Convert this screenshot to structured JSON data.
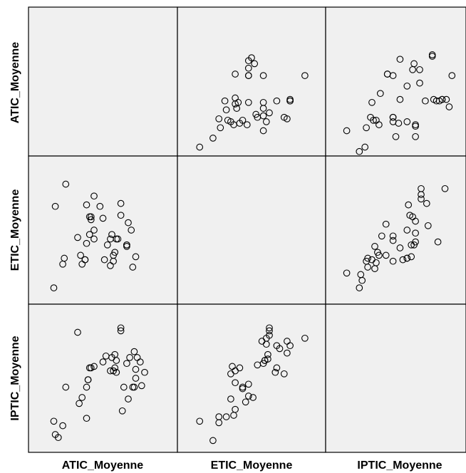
{
  "chart_data": {
    "type": "scatter",
    "subtype": "scatterplot-matrix",
    "variables": [
      "ATIC_Moyenne",
      "ETIC_Moyenne",
      "IPTIC_Moyenne"
    ],
    "range": [
      0,
      100
    ],
    "grid": false,
    "marker": "hollow-circle",
    "panels": [
      {
        "row": "ATIC_Moyenne",
        "col": "ETIC_Moyenne",
        "points": [
          [
            15,
            6
          ],
          [
            24,
            12
          ],
          [
            28,
            25
          ],
          [
            29,
            19
          ],
          [
            32,
            37
          ],
          [
            33,
            31
          ],
          [
            34,
            24
          ],
          [
            36,
            23
          ],
          [
            38,
            21
          ],
          [
            39,
            39
          ],
          [
            39,
            55
          ],
          [
            39,
            35
          ],
          [
            41,
            36
          ],
          [
            40,
            32
          ],
          [
            42,
            22
          ],
          [
            44,
            24
          ],
          [
            47,
            21
          ],
          [
            48,
            54
          ],
          [
            48,
            54
          ],
          [
            48,
            36
          ],
          [
            48,
            59
          ],
          [
            48,
            64
          ],
          [
            50,
            66
          ],
          [
            52,
            62
          ],
          [
            53,
            28
          ],
          [
            54,
            26
          ],
          [
            58,
            27
          ],
          [
            58,
            17
          ],
          [
            58,
            32
          ],
          [
            58,
            36
          ],
          [
            58,
            54
          ],
          [
            60,
            23
          ],
          [
            62,
            29
          ],
          [
            67,
            37
          ],
          [
            72,
            26
          ],
          [
            74,
            25
          ],
          [
            76,
            37
          ],
          [
            76,
            37
          ],
          [
            76,
            38
          ],
          [
            86,
            54
          ]
        ]
      },
      {
        "row": "ATIC_Moyenne",
        "col": "IPTIC_Moyenne",
        "points": [
          [
            15,
            17
          ],
          [
            24,
            3
          ],
          [
            28,
            6
          ],
          [
            29,
            19
          ],
          [
            32,
            26
          ],
          [
            33,
            36
          ],
          [
            34,
            24
          ],
          [
            36,
            24
          ],
          [
            38,
            21
          ],
          [
            39,
            42
          ],
          [
            44,
            55
          ],
          [
            44,
            55
          ],
          [
            48,
            54
          ],
          [
            48,
            23
          ],
          [
            48,
            26
          ],
          [
            48,
            26
          ],
          [
            50,
            13
          ],
          [
            52,
            22
          ],
          [
            53,
            38
          ],
          [
            53,
            65
          ],
          [
            58,
            47
          ],
          [
            58,
            23
          ],
          [
            62,
            58
          ],
          [
            63,
            62
          ],
          [
            64,
            13
          ],
          [
            64,
            20
          ],
          [
            64,
            21
          ],
          [
            67,
            49
          ],
          [
            67,
            58
          ],
          [
            71,
            37
          ],
          [
            76,
            67
          ],
          [
            76,
            68
          ],
          [
            77,
            38
          ],
          [
            79,
            37
          ],
          [
            81,
            37
          ],
          [
            83,
            38
          ],
          [
            83,
            38
          ],
          [
            86,
            38
          ],
          [
            88,
            33
          ],
          [
            90,
            54
          ]
        ]
      },
      {
        "row": "ETIC_Moyenne",
        "col": "ATIC_Moyenne",
        "points": [
          [
            17,
            11
          ],
          [
            18,
            66
          ],
          [
            23,
            27
          ],
          [
            24,
            31
          ],
          [
            25,
            81
          ],
          [
            33,
            45
          ],
          [
            35,
            33
          ],
          [
            36,
            27
          ],
          [
            38,
            30
          ],
          [
            38,
            30
          ],
          [
            39,
            41
          ],
          [
            39,
            67
          ],
          [
            41,
            47
          ],
          [
            41,
            59
          ],
          [
            42,
            59
          ],
          [
            42,
            57
          ],
          [
            44,
            44
          ],
          [
            44,
            50
          ],
          [
            44,
            73
          ],
          [
            48,
            66
          ],
          [
            50,
            58
          ],
          [
            51,
            30
          ],
          [
            53,
            40
          ],
          [
            55,
            26
          ],
          [
            55,
            44
          ],
          [
            56,
            47
          ],
          [
            57,
            29
          ],
          [
            57,
            33
          ],
          [
            58,
            35
          ],
          [
            59,
            44
          ],
          [
            60,
            44
          ],
          [
            62,
            60
          ],
          [
            62,
            68
          ],
          [
            66,
            40
          ],
          [
            66,
            39
          ],
          [
            66,
            40
          ],
          [
            67,
            55
          ],
          [
            69,
            50
          ],
          [
            70,
            25
          ],
          [
            72,
            32
          ]
        ]
      },
      {
        "row": "ETIC_Moyenne",
        "col": "IPTIC_Moyenne",
        "points": [
          [
            15,
            21
          ],
          [
            24,
            11
          ],
          [
            25,
            20
          ],
          [
            26,
            16
          ],
          [
            29,
            29
          ],
          [
            30,
            31
          ],
          [
            30,
            25
          ],
          [
            33,
            30
          ],
          [
            35,
            39
          ],
          [
            35,
            24
          ],
          [
            36,
            28
          ],
          [
            37,
            35
          ],
          [
            38,
            33
          ],
          [
            40,
            46
          ],
          [
            43,
            54
          ],
          [
            43,
            33
          ],
          [
            48,
            46
          ],
          [
            48,
            29
          ],
          [
            48,
            43
          ],
          [
            53,
            38
          ],
          [
            55,
            30
          ],
          [
            58,
            31
          ],
          [
            58,
            31
          ],
          [
            58,
            50
          ],
          [
            59,
            67
          ],
          [
            60,
            60
          ],
          [
            61,
            40
          ],
          [
            61,
            32
          ],
          [
            62,
            59
          ],
          [
            63,
            40
          ],
          [
            64,
            48
          ],
          [
            64,
            56
          ],
          [
            64,
            42
          ],
          [
            68,
            71
          ],
          [
            68,
            74
          ],
          [
            68,
            78
          ],
          [
            72,
            68
          ],
          [
            73,
            53
          ],
          [
            80,
            42
          ],
          [
            85,
            78
          ]
        ]
      },
      {
        "row": "IPTIC_Moyenne",
        "col": "ATIC_Moyenne",
        "points": [
          [
            17,
            21
          ],
          [
            18,
            12
          ],
          [
            20,
            10
          ],
          [
            23,
            18
          ],
          [
            25,
            44
          ],
          [
            33,
            81
          ],
          [
            34,
            33
          ],
          [
            36,
            37
          ],
          [
            39,
            23
          ],
          [
            39,
            44
          ],
          [
            40,
            49
          ],
          [
            40,
            49
          ],
          [
            41,
            57
          ],
          [
            42,
            57
          ],
          [
            44,
            58
          ],
          [
            50,
            61
          ],
          [
            52,
            65
          ],
          [
            55,
            55
          ],
          [
            56,
            64
          ],
          [
            57,
            55
          ],
          [
            58,
            57
          ],
          [
            58,
            66
          ],
          [
            59,
            54
          ],
          [
            59,
            62
          ],
          [
            62,
            82
          ],
          [
            62,
            84
          ],
          [
            63,
            28
          ],
          [
            64,
            44
          ],
          [
            66,
            60
          ],
          [
            67,
            36
          ],
          [
            68,
            64
          ],
          [
            70,
            44
          ],
          [
            71,
            68
          ],
          [
            71,
            44
          ],
          [
            72,
            50
          ],
          [
            72,
            56
          ],
          [
            73,
            64
          ],
          [
            75,
            61
          ],
          [
            76,
            45
          ],
          [
            78,
            54
          ]
        ]
      },
      {
        "row": "IPTIC_Moyenne",
        "col": "ETIC_Moyenne",
        "points": [
          [
            15,
            21
          ],
          [
            24,
            8
          ],
          [
            28,
            24
          ],
          [
            28,
            20
          ],
          [
            33,
            24
          ],
          [
            36,
            36
          ],
          [
            36,
            53
          ],
          [
            37,
            58
          ],
          [
            38,
            25
          ],
          [
            39,
            29
          ],
          [
            39,
            47
          ],
          [
            39,
            55
          ],
          [
            42,
            57
          ],
          [
            44,
            44
          ],
          [
            44,
            43
          ],
          [
            46,
            34
          ],
          [
            48,
            38
          ],
          [
            48,
            46
          ],
          [
            51,
            37
          ],
          [
            54,
            59
          ],
          [
            57,
            75
          ],
          [
            58,
            60
          ],
          [
            59,
            62
          ],
          [
            59,
            62
          ],
          [
            60,
            73
          ],
          [
            60,
            77
          ],
          [
            61,
            66
          ],
          [
            61,
            63
          ],
          [
            62,
            82
          ],
          [
            62,
            79
          ],
          [
            62,
            84
          ],
          [
            66,
            54
          ],
          [
            67,
            72
          ],
          [
            67,
            57
          ],
          [
            69,
            70
          ],
          [
            72,
            53
          ],
          [
            74,
            67
          ],
          [
            74,
            75
          ],
          [
            76,
            72
          ],
          [
            86,
            77
          ]
        ]
      }
    ]
  }
}
